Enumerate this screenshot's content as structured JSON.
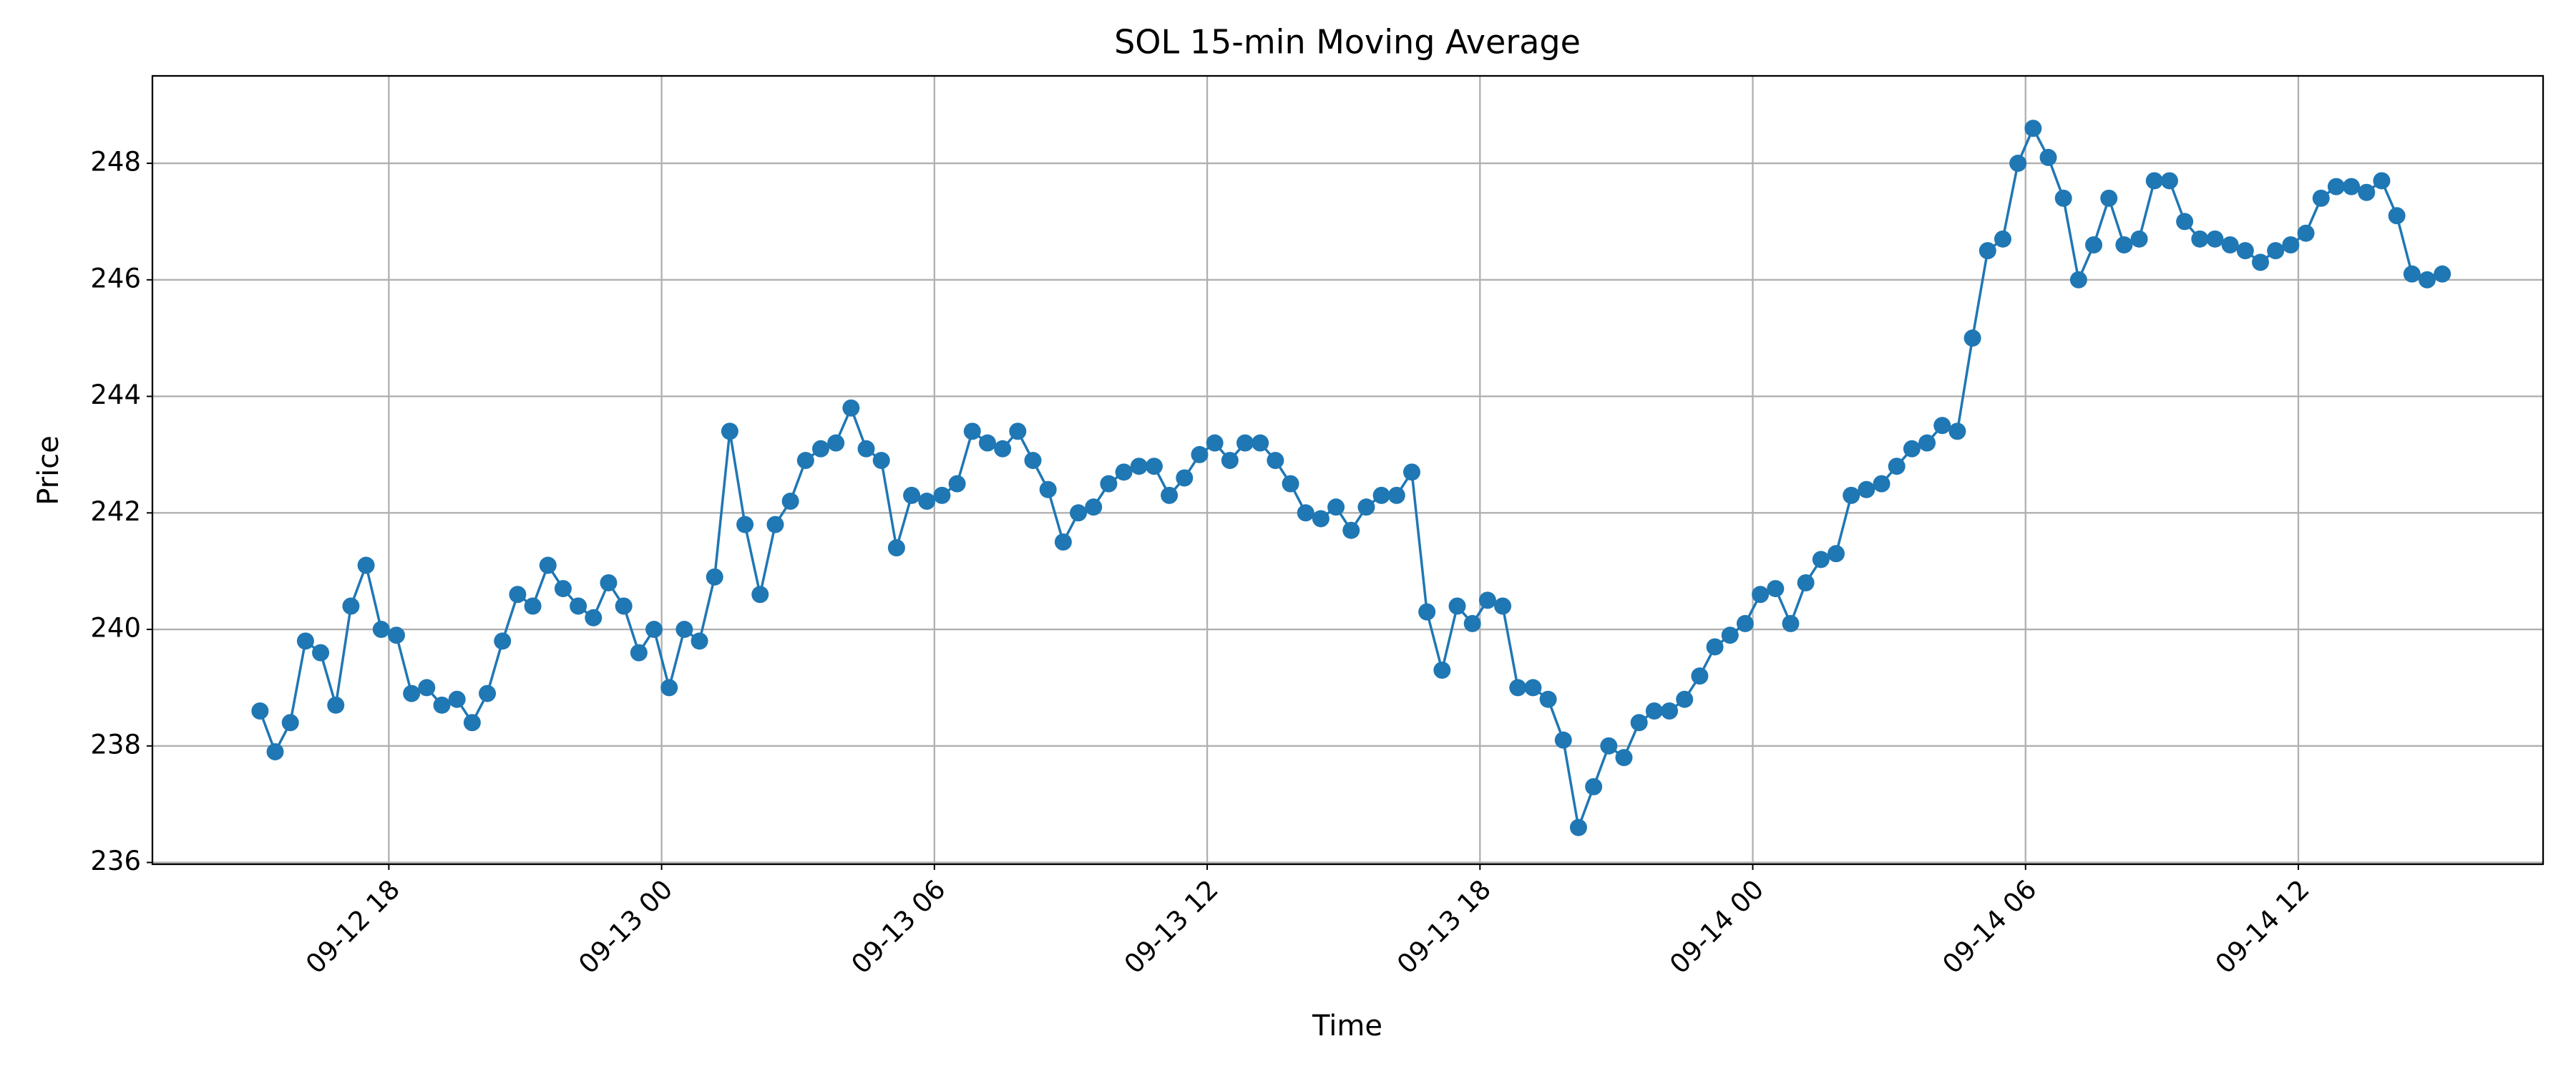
{
  "chart_data": {
    "type": "line",
    "title": "SOL 15-min Moving Average",
    "x_label": "Time",
    "y_label": "Price",
    "x": [
      "09-12 15:10",
      "09-12 15:30",
      "09-12 15:50",
      "09-12 16:10",
      "09-12 16:30",
      "09-12 16:50",
      "09-12 17:10",
      "09-12 17:30",
      "09-12 17:50",
      "09-12 18:10",
      "09-12 18:30",
      "09-12 18:50",
      "09-12 19:10",
      "09-12 19:30",
      "09-12 19:50",
      "09-12 20:10",
      "09-12 20:30",
      "09-12 20:50",
      "09-12 21:10",
      "09-12 21:30",
      "09-12 21:50",
      "09-12 22:10",
      "09-12 22:30",
      "09-12 22:50",
      "09-12 23:10",
      "09-12 23:30",
      "09-12 23:50",
      "09-13 00:10",
      "09-13 00:30",
      "09-13 00:50",
      "09-13 01:10",
      "09-13 01:30",
      "09-13 01:50",
      "09-13 02:10",
      "09-13 02:30",
      "09-13 02:50",
      "09-13 03:10",
      "09-13 03:30",
      "09-13 03:50",
      "09-13 04:10",
      "09-13 04:30",
      "09-13 04:50",
      "09-13 05:10",
      "09-13 05:30",
      "09-13 05:50",
      "09-13 06:10",
      "09-13 06:30",
      "09-13 06:50",
      "09-13 07:10",
      "09-13 07:30",
      "09-13 07:50",
      "09-13 08:10",
      "09-13 08:30",
      "09-13 08:50",
      "09-13 09:10",
      "09-13 09:30",
      "09-13 09:50",
      "09-13 10:10",
      "09-13 10:30",
      "09-13 10:50",
      "09-13 11:10",
      "09-13 11:30",
      "09-13 11:50",
      "09-13 12:10",
      "09-13 12:30",
      "09-13 12:50",
      "09-13 13:10",
      "09-13 13:30",
      "09-13 13:50",
      "09-13 14:10",
      "09-13 14:30",
      "09-13 14:50",
      "09-13 15:10",
      "09-13 15:30",
      "09-13 15:50",
      "09-13 16:10",
      "09-13 16:30",
      "09-13 16:50",
      "09-13 17:10",
      "09-13 17:30",
      "09-13 17:50",
      "09-13 18:10",
      "09-13 18:30",
      "09-13 18:50",
      "09-13 19:10",
      "09-13 19:30",
      "09-13 19:50",
      "09-13 20:10",
      "09-13 20:30",
      "09-13 20:50",
      "09-13 21:10",
      "09-13 21:30",
      "09-13 21:50",
      "09-13 22:10",
      "09-13 22:30",
      "09-13 22:50",
      "09-13 23:10",
      "09-13 23:30",
      "09-13 23:50",
      "09-14 00:10",
      "09-14 00:30",
      "09-14 00:50",
      "09-14 01:10",
      "09-14 01:30",
      "09-14 01:50",
      "09-14 02:10",
      "09-14 02:30",
      "09-14 02:50",
      "09-14 03:10",
      "09-14 03:30",
      "09-14 03:50",
      "09-14 04:10",
      "09-14 04:30",
      "09-14 04:50",
      "09-14 05:10",
      "09-14 05:30",
      "09-14 05:50",
      "09-14 06:10",
      "09-14 06:30",
      "09-14 06:50",
      "09-14 07:10",
      "09-14 07:30",
      "09-14 07:50",
      "09-14 08:10",
      "09-14 08:30",
      "09-14 08:50",
      "09-14 09:10",
      "09-14 09:30",
      "09-14 09:50",
      "09-14 10:10",
      "09-14 10:30",
      "09-14 10:50",
      "09-14 11:10",
      "09-14 11:30",
      "09-14 11:50",
      "09-14 12:10",
      "09-14 12:30",
      "09-14 12:50",
      "09-14 13:10",
      "09-14 13:30",
      "09-14 13:50",
      "09-14 14:10",
      "09-14 14:30",
      "09-14 14:50",
      "09-14 15:10"
    ],
    "values": [
      238.6,
      237.9,
      238.4,
      239.8,
      239.6,
      238.7,
      240.4,
      241.1,
      240.0,
      239.9,
      238.9,
      239.0,
      238.7,
      238.8,
      238.4,
      238.9,
      239.8,
      240.6,
      240.4,
      241.1,
      240.7,
      240.4,
      240.2,
      240.8,
      240.4,
      239.6,
      240.0,
      239.0,
      240.0,
      239.8,
      240.9,
      243.4,
      241.8,
      240.6,
      241.8,
      242.2,
      242.9,
      243.1,
      243.2,
      243.8,
      243.1,
      242.9,
      241.4,
      242.3,
      242.2,
      242.3,
      242.5,
      243.4,
      243.2,
      243.1,
      243.4,
      242.9,
      242.4,
      241.5,
      242.0,
      242.1,
      242.5,
      242.7,
      242.8,
      242.8,
      242.3,
      242.6,
      243.0,
      243.2,
      242.9,
      243.2,
      243.2,
      242.9,
      242.5,
      242.0,
      241.9,
      242.1,
      241.7,
      242.1,
      242.3,
      242.3,
      242.7,
      240.3,
      239.3,
      240.4,
      240.1,
      240.5,
      240.4,
      239.0,
      239.0,
      238.8,
      238.1,
      236.6,
      237.3,
      238.0,
      237.8,
      238.4,
      238.6,
      238.6,
      238.8,
      239.2,
      239.7,
      239.9,
      240.1,
      240.6,
      240.7,
      240.1,
      240.8,
      241.2,
      241.3,
      242.3,
      242.4,
      242.5,
      242.8,
      243.1,
      243.2,
      243.5,
      243.4,
      245.0,
      246.5,
      246.7,
      248.0,
      248.6,
      248.1,
      247.4,
      246.0,
      246.6,
      247.4,
      246.6,
      246.7,
      247.7,
      247.7,
      247.0,
      246.7,
      246.7,
      246.6,
      246.5,
      246.3,
      246.5,
      246.6,
      246.8,
      247.4,
      247.6,
      247.6,
      247.5,
      247.7,
      247.1,
      246.1,
      246.0,
      246.1
    ],
    "color": "#1f77b4",
    "marker": true,
    "xlim": [
      "09-12 12:48",
      "09-14 17:23"
    ],
    "xticks": [
      "09-12 18",
      "09-13 00",
      "09-13 06",
      "09-13 12",
      "09-13 18",
      "09-14 00",
      "09-14 06",
      "09-14 12"
    ],
    "ylim": [
      235.97,
      249.5
    ],
    "yticks": [
      236,
      238,
      240,
      242,
      244,
      246,
      248
    ],
    "grid": true
  }
}
